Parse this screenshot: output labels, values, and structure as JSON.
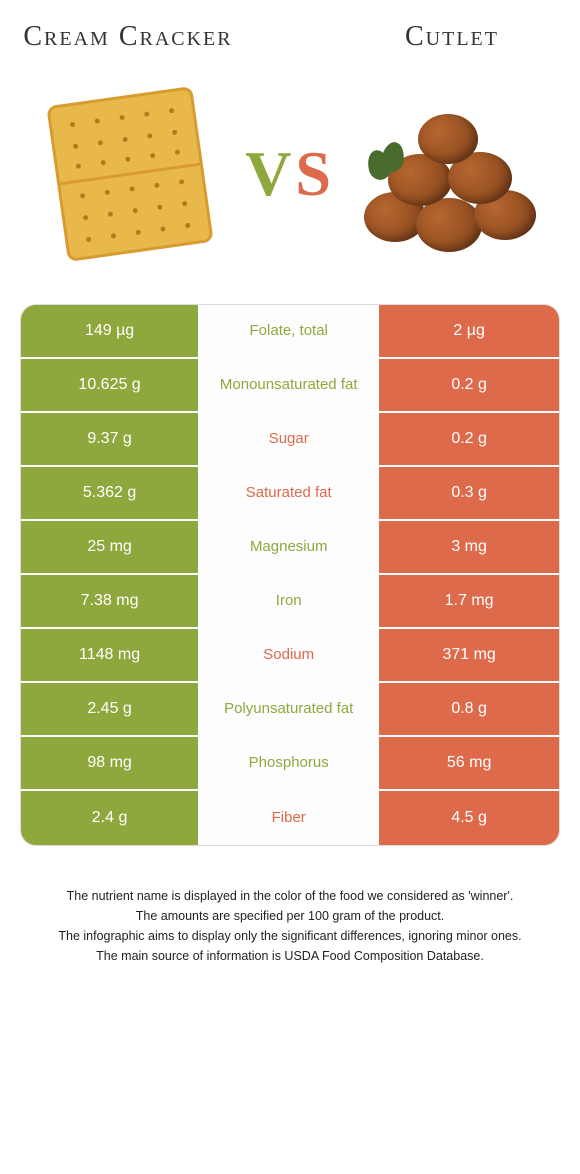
{
  "food_left": {
    "name": "Cream Cracker",
    "color": "#8fa83d"
  },
  "food_right": {
    "name": "Cutlet",
    "color": "#dd6a4a"
  },
  "vs_text": {
    "v": "V",
    "s": "S"
  },
  "rows": [
    {
      "left": "149 µg",
      "label": "Folate, total",
      "right": "2 µg",
      "winner": "left"
    },
    {
      "left": "10.625 g",
      "label": "Monounsaturated fat",
      "right": "0.2 g",
      "winner": "left"
    },
    {
      "left": "9.37 g",
      "label": "Sugar",
      "right": "0.2 g",
      "winner": "right"
    },
    {
      "left": "5.362 g",
      "label": "Saturated fat",
      "right": "0.3 g",
      "winner": "right"
    },
    {
      "left": "25 mg",
      "label": "Magnesium",
      "right": "3 mg",
      "winner": "left"
    },
    {
      "left": "7.38 mg",
      "label": "Iron",
      "right": "1.7 mg",
      "winner": "left"
    },
    {
      "left": "1148 mg",
      "label": "Sodium",
      "right": "371 mg",
      "winner": "right"
    },
    {
      "left": "2.45 g",
      "label": "Polyunsaturated fat",
      "right": "0.8 g",
      "winner": "left"
    },
    {
      "left": "98 mg",
      "label": "Phosphorus",
      "right": "56 mg",
      "winner": "left"
    },
    {
      "left": "2.4 g",
      "label": "Fiber",
      "right": "4.5 g",
      "winner": "right"
    }
  ],
  "footnotes": [
    "The nutrient name is displayed in the color of the food we considered as 'winner'.",
    "The amounts are specified per 100 gram of the product.",
    "The infographic aims to display only the significant differences, ignoring minor ones.",
    "The main source of information is USDA Food Composition Database."
  ],
  "cracker_colors": {
    "fill": "#e8b84a",
    "edge": "#d89c2e",
    "dot": "#b87820"
  },
  "cutlet_color": "#8a4a20"
}
